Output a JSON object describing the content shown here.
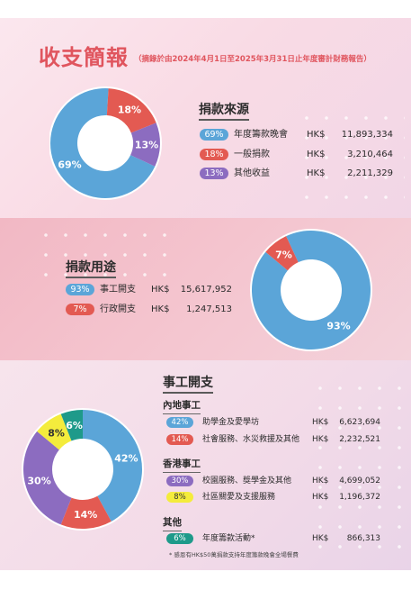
{
  "header": {
    "title": "收支簡報",
    "subtitle": "（摘錄於由2024年4月1日至2025年3月31日止年度審計財務報告）"
  },
  "colors": {
    "blue": "#5ba5d8",
    "red": "#e35a52",
    "purple": "#8c6cc0",
    "yellow": "#f4ec3c",
    "teal": "#1e9a8a",
    "accent": "#e0555e"
  },
  "sources": {
    "heading": "捐款來源",
    "items": [
      {
        "pct": "69%",
        "label": "年度籌款晚會",
        "currency": "HK$",
        "amount": "11,893,334"
      },
      {
        "pct": "18%",
        "label": "一般捐款",
        "currency": "HK$",
        "amount": "3,210,464"
      },
      {
        "pct": "13%",
        "label": "其他收益",
        "currency": "HK$",
        "amount": "2,211,329"
      }
    ]
  },
  "uses": {
    "heading": "捐款用途",
    "items": [
      {
        "pct": "93%",
        "label": "事工開支",
        "currency": "HK$",
        "amount": "15,617,952"
      },
      {
        "pct": "7%",
        "label": "行政開支",
        "currency": "HK$",
        "amount": "1,247,513"
      }
    ]
  },
  "ministry": {
    "heading": "事工開支",
    "mainland": {
      "heading": "內地事工",
      "items": [
        {
          "pct": "42%",
          "label": "助學金及愛學坊",
          "currency": "HK$",
          "amount": "6,623,694"
        },
        {
          "pct": "14%",
          "label": "社會服務、水災救援及其他",
          "currency": "HK$",
          "amount": "2,232,521"
        }
      ]
    },
    "hongkong": {
      "heading": "香港事工",
      "items": [
        {
          "pct": "30%",
          "label": "校園服務、獎學金及其他",
          "currency": "HK$",
          "amount": "4,699,052"
        },
        {
          "pct": "8%",
          "label": "社區關愛及支援服務",
          "currency": "HK$",
          "amount": "1,196,372"
        }
      ]
    },
    "other": {
      "heading": "其他",
      "items": [
        {
          "pct": "6%",
          "label": "年度籌款活動*",
          "currency": "HK$",
          "amount": "866,313"
        }
      ]
    },
    "note": "* 感恩有HK$50萬捐款支持年度籌款晚會全場餐費"
  },
  "chart_data": [
    {
      "type": "pie",
      "categories": [
        "年度籌款晚會",
        "一般捐款",
        "其他收益"
      ],
      "values": [
        69,
        18,
        13
      ],
      "data_labels": [
        "69%",
        "18%",
        "13%"
      ],
      "colors": [
        "#5ba5d8",
        "#e35a52",
        "#8c6cc0"
      ]
    },
    {
      "type": "pie",
      "categories": [
        "事工開支",
        "行政開支"
      ],
      "values": [
        93,
        7
      ],
      "data_labels": [
        "93%",
        "7%"
      ],
      "colors": [
        "#5ba5d8",
        "#e35a52"
      ]
    },
    {
      "type": "pie",
      "categories": [
        "助學金及愛學坊",
        "社會服務、水災救援及其他",
        "校園服務、獎學金及其他",
        "社區關愛及支援服務",
        "年度籌款活動*"
      ],
      "values": [
        42,
        14,
        30,
        8,
        6
      ],
      "data_labels": [
        "42%",
        "14%",
        "30%",
        "8%",
        "6%"
      ],
      "colors": [
        "#5ba5d8",
        "#e35a52",
        "#8c6cc0",
        "#f4ec3c",
        "#1e9a8a"
      ]
    }
  ]
}
